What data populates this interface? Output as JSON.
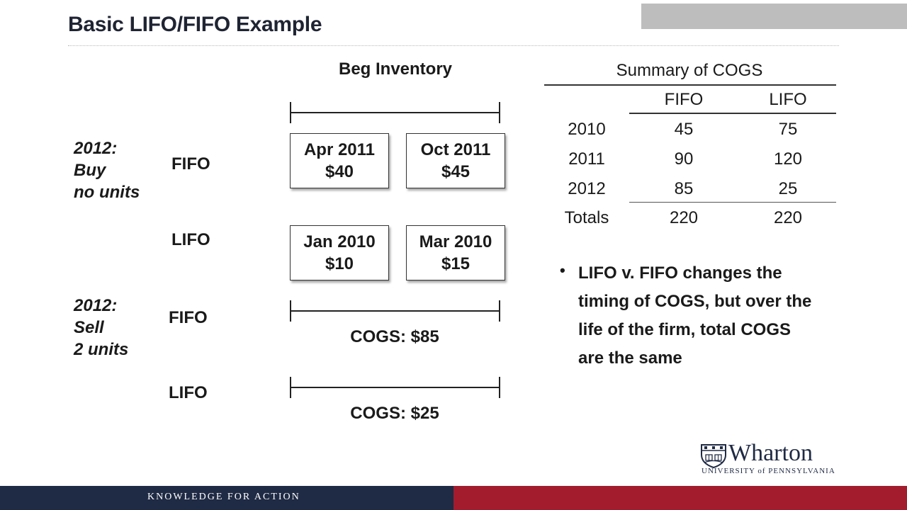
{
  "title": "Basic LIFO/FIFO Example",
  "beg_inventory_label": "Beg Inventory",
  "scenarios": [
    {
      "year": "2012:",
      "line1": "Buy",
      "line2": "no units"
    },
    {
      "year": "2012:",
      "line1": "Sell",
      "line2": "2 units"
    }
  ],
  "rows": {
    "fifo_label": "FIFO",
    "lifo_label": "LIFO",
    "fifo_boxes": [
      {
        "date": "Apr 2011",
        "price": "$40"
      },
      {
        "date": "Oct 2011",
        "price": "$45"
      }
    ],
    "lifo_boxes": [
      {
        "date": "Jan 2010",
        "price": "$10"
      },
      {
        "date": "Mar 2010",
        "price": "$15"
      }
    ],
    "sell_fifo_label": "FIFO",
    "sell_lifo_label": "LIFO",
    "fifo_cogs": "COGS: $85",
    "lifo_cogs": "COGS: $25"
  },
  "summary": {
    "title": "Summary of COGS",
    "headers": [
      "FIFO",
      "LIFO"
    ],
    "rows": [
      {
        "label": "2010",
        "fifo": "45",
        "lifo": "75"
      },
      {
        "label": "2011",
        "fifo": "90",
        "lifo": "120"
      },
      {
        "label": "2012",
        "fifo": "85",
        "lifo": "25"
      }
    ],
    "totals": {
      "label": "Totals",
      "fifo": "220",
      "lifo": "220"
    }
  },
  "bullet": {
    "marker": "•",
    "text": "LIFO v. FIFO changes the timing of COGS, but over the life of the firm, total COGS are the same"
  },
  "logo": {
    "name": "Wharton",
    "line2": "UNIVERSITY of PENNSYLVANIA"
  },
  "footer": {
    "text": "KNOWLEDGE FOR ACTION"
  },
  "colors": {
    "navy": "#1f2a44",
    "crimson": "#a21c2e",
    "gray_block": "#bdbdbd"
  }
}
